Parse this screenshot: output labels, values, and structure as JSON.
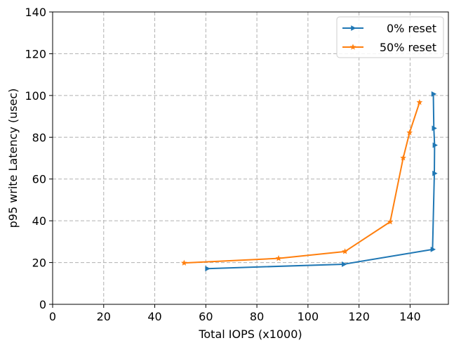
{
  "chart_data": {
    "type": "line",
    "title": "",
    "xlabel": "Total IOPS (x1000)",
    "ylabel": "p95 write Latency (usec)",
    "xlim": [
      0,
      155
    ],
    "ylim": [
      0,
      140
    ],
    "xticks": [
      0,
      20,
      40,
      60,
      80,
      100,
      120,
      140
    ],
    "yticks": [
      0,
      20,
      40,
      60,
      80,
      100,
      120,
      140
    ],
    "grid": true,
    "legend_position": "top-right",
    "series": [
      {
        "name": "0% reset",
        "color": "#1f77b4",
        "marker": "triangle-right",
        "points": [
          {
            "x": 60.5,
            "y": 17.1
          },
          {
            "x": 114.0,
            "y": 19.2
          },
          {
            "x": 148.8,
            "y": 26.3
          },
          {
            "x": 149.5,
            "y": 62.7
          },
          {
            "x": 149.6,
            "y": 76.2
          },
          {
            "x": 149.3,
            "y": 84.3
          },
          {
            "x": 149.1,
            "y": 100.7
          }
        ]
      },
      {
        "name": "50% reset",
        "color": "#ff7f0e",
        "marker": "star",
        "points": [
          {
            "x": 51.5,
            "y": 19.8
          },
          {
            "x": 88.5,
            "y": 22.0
          },
          {
            "x": 114.5,
            "y": 25.3
          },
          {
            "x": 132.2,
            "y": 39.5
          },
          {
            "x": 137.3,
            "y": 70.1
          },
          {
            "x": 139.8,
            "y": 82.2
          },
          {
            "x": 143.7,
            "y": 96.7
          }
        ]
      }
    ]
  }
}
